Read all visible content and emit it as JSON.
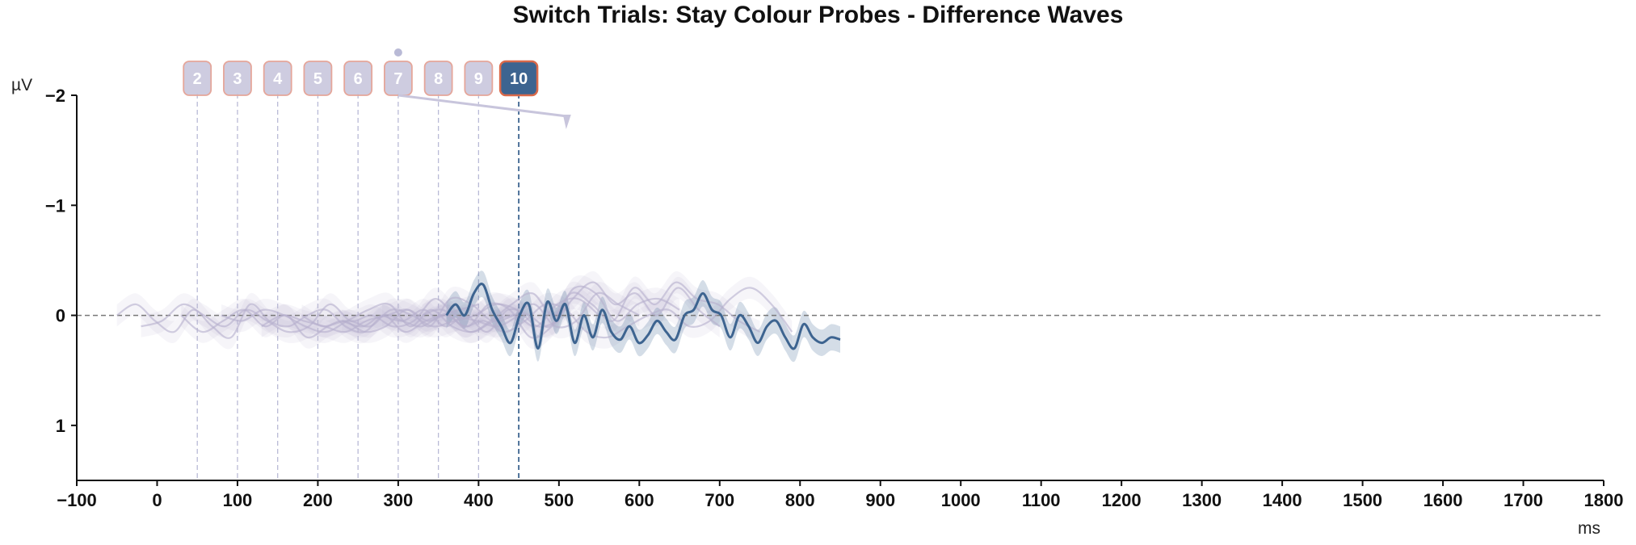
{
  "chart_data": {
    "type": "line",
    "title": "Switch Trials: Stay Colour Probes - Difference Waves",
    "xlabel": "ms",
    "ylabel": "µV",
    "xlim": [
      -100,
      1800
    ],
    "ylim": [
      1.5,
      -2
    ],
    "y_inverted": true,
    "x_ticks": [
      -100,
      0,
      100,
      200,
      300,
      400,
      500,
      600,
      700,
      800,
      900,
      1000,
      1100,
      1200,
      1300,
      1400,
      1500,
      1600,
      1700,
      1800
    ],
    "y_ticks": [
      -2,
      -1,
      0,
      1
    ],
    "x_tick_labels": [
      "−100",
      "0",
      "100",
      "200",
      "300",
      "400",
      "500",
      "600",
      "700",
      "800",
      "900",
      "1000",
      "1100",
      "1200",
      "1300",
      "1400",
      "1500",
      "1600",
      "1700",
      "1800"
    ],
    "y_tick_labels": [
      "−2",
      "−1",
      "0",
      "1"
    ],
    "zero_line": true,
    "grid": false,
    "colors": {
      "active": "#3d6490",
      "faded": "#b6afcd",
      "badge_faded": "#c5c3da",
      "badge_border": "#e5a69a",
      "badge_active_border": "#d9694a"
    },
    "markers": [
      {
        "label": "2",
        "x": 50
      },
      {
        "label": "3",
        "x": 100
      },
      {
        "label": "4",
        "x": 150
      },
      {
        "label": "5",
        "x": 200
      },
      {
        "label": "6",
        "x": 250
      },
      {
        "label": "7",
        "x": 300
      },
      {
        "label": "8",
        "x": 350
      },
      {
        "label": "9",
        "x": 400
      },
      {
        "label": "10",
        "x": 450,
        "active": true
      }
    ],
    "series": [
      {
        "x_start": -50,
        "x_end": 400,
        "values": [
          0.0,
          -0.1,
          0.05,
          0.15,
          -0.05,
          0.1,
          0.2,
          -0.1,
          0.05,
          0.1,
          0.0,
          -0.05,
          0.1,
          0.15,
          0.0,
          0.05,
          0.1,
          0.0,
          -0.05,
          -0.1
        ]
      },
      {
        "x_start": -20,
        "x_end": 450,
        "values": [
          0.1,
          0.05,
          -0.1,
          0.0,
          0.1,
          -0.05,
          0.05,
          0.15,
          0.1,
          -0.1,
          0.05,
          0.0,
          0.1,
          0.05,
          -0.15,
          0.0,
          0.05,
          0.1,
          0.0
        ]
      },
      {
        "x_start": 30,
        "x_end": 500,
        "values": [
          0.0,
          0.15,
          0.05,
          -0.05,
          0.1,
          0.0,
          0.2,
          0.1,
          0.05,
          0.1,
          -0.05,
          0.0,
          0.1,
          0.05,
          0.0,
          -0.1,
          -0.05,
          0.1,
          0.05
        ]
      },
      {
        "x_start": 80,
        "x_end": 550,
        "values": [
          0.0,
          0.05,
          -0.05,
          0.0,
          0.1,
          0.15,
          0.05,
          -0.05,
          -0.1,
          0.1,
          -0.05,
          0.1,
          0.15,
          0.05,
          0.0,
          0.1,
          -0.1,
          -0.15,
          0.0
        ]
      },
      {
        "x_start": 130,
        "x_end": 600,
        "values": [
          0.1,
          0.0,
          0.05,
          0.1,
          0.15,
          0.05,
          0.0,
          -0.05,
          0.1,
          -0.15,
          -0.1,
          0.05,
          0.0,
          -0.1,
          0.1,
          0.05,
          -0.2,
          -0.1,
          0.0
        ]
      },
      {
        "x_start": 180,
        "x_end": 650,
        "values": [
          0.0,
          0.1,
          0.05,
          0.15,
          0.1,
          -0.05,
          0.05,
          0.0,
          0.15,
          0.05,
          -0.1,
          -0.2,
          0.0,
          -0.25,
          -0.2,
          0.05,
          -0.1,
          -0.15,
          -0.05
        ]
      },
      {
        "x_start": 230,
        "x_end": 700,
        "values": [
          0.05,
          0.1,
          0.0,
          0.15,
          0.05,
          0.0,
          0.1,
          -0.1,
          -0.05,
          0.2,
          0.1,
          -0.15,
          -0.3,
          -0.1,
          -0.2,
          0.0,
          -0.25,
          -0.05,
          0.1
        ]
      },
      {
        "x_start": 280,
        "x_end": 750,
        "values": [
          0.0,
          0.05,
          -0.05,
          0.1,
          0.0,
          0.15,
          -0.05,
          0.0,
          0.1,
          -0.2,
          -0.1,
          0.05,
          -0.25,
          -0.1,
          -0.3,
          -0.15,
          -0.1,
          0.05,
          0.15
        ]
      },
      {
        "x_start": 330,
        "x_end": 790,
        "values": [
          0.0,
          -0.05,
          0.1,
          0.05,
          0.15,
          0.05,
          -0.1,
          -0.05,
          0.15,
          0.2,
          0.1,
          0.0,
          -0.05,
          0.1,
          0.05,
          -0.15,
          -0.25,
          -0.1,
          0.15
        ]
      },
      {
        "x_start": 360,
        "x_end": 850,
        "active": true,
        "values": [
          0.0,
          -0.1,
          0.0,
          -0.2,
          -0.28,
          -0.05,
          0.1,
          0.25,
          0.0,
          -0.1,
          0.3,
          -0.12,
          0.05,
          -0.1,
          0.25,
          0.0,
          0.2,
          -0.05,
          0.15,
          0.22,
          0.1,
          0.25,
          0.18,
          0.05,
          0.15,
          0.22,
          0.0,
          -0.05,
          -0.2,
          -0.05,
          0.0,
          0.2,
          0.0,
          0.1,
          0.25,
          0.1,
          0.05,
          0.2,
          0.3,
          0.08,
          0.2,
          0.25,
          0.2,
          0.22
        ]
      }
    ]
  }
}
